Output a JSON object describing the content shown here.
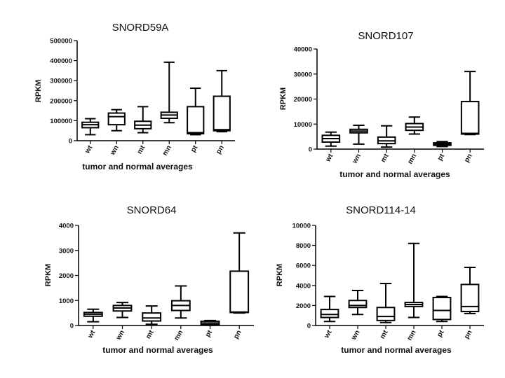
{
  "chart_data": [
    {
      "type": "boxplot",
      "title": "SNORD59A",
      "xlabel": "tumor and normal averages",
      "ylabel": "RPKM",
      "ylim": [
        0,
        500000
      ],
      "yticks": [
        0,
        100000,
        200000,
        300000,
        400000,
        500000
      ],
      "categories": [
        "wt",
        "wn",
        "mt",
        "mn",
        "pt",
        "pn"
      ],
      "boxes": [
        {
          "min": 30000,
          "q1": 65000,
          "median": 80000,
          "q3": 92000,
          "max": 110000
        },
        {
          "min": 50000,
          "q1": 80000,
          "median": 120000,
          "q3": 138000,
          "max": 155000
        },
        {
          "min": 40000,
          "q1": 60000,
          "median": 78000,
          "q3": 97000,
          "max": 170000
        },
        {
          "min": 90000,
          "q1": 112000,
          "median": 128000,
          "q3": 142000,
          "max": 392000
        },
        {
          "min": 30000,
          "q1": 35000,
          "median": 40000,
          "q3": 170000,
          "max": 262000
        },
        {
          "min": 45000,
          "q1": 50000,
          "median": 55000,
          "q3": 222000,
          "max": 350000
        }
      ]
    },
    {
      "type": "boxplot",
      "title": "SNORD107",
      "xlabel": "tumor and normal averages",
      "ylabel": "RPKM",
      "ylim": [
        0,
        40000
      ],
      "yticks": [
        0,
        10000,
        20000,
        30000,
        40000
      ],
      "categories": [
        "wt",
        "wn",
        "mt",
        "mn",
        "pt",
        "pn"
      ],
      "boxes": [
        {
          "min": 1200,
          "q1": 2800,
          "median": 4200,
          "q3": 5500,
          "max": 6800
        },
        {
          "min": 2000,
          "q1": 6500,
          "median": 7200,
          "q3": 7900,
          "max": 9500
        },
        {
          "min": 800,
          "q1": 2200,
          "median": 3300,
          "q3": 4800,
          "max": 9300
        },
        {
          "min": 6000,
          "q1": 7500,
          "median": 8800,
          "q3": 10200,
          "max": 12800
        },
        {
          "min": 1000,
          "q1": 1500,
          "median": 2000,
          "q3": 2500,
          "max": 3000
        },
        {
          "min": 5800,
          "q1": 6000,
          "median": 6300,
          "q3": 19000,
          "max": 31000
        }
      ]
    },
    {
      "type": "boxplot",
      "title": "SNORD64",
      "xlabel": "tumor and normal averages",
      "ylabel": "RPKM",
      "ylim": [
        0,
        4000
      ],
      "yticks": [
        0,
        1000,
        2000,
        3000,
        4000
      ],
      "categories": [
        "wt",
        "wn",
        "mt",
        "mn",
        "pt",
        "pn"
      ],
      "boxes": [
        {
          "min": 150,
          "q1": 370,
          "median": 450,
          "q3": 520,
          "max": 650
        },
        {
          "min": 320,
          "q1": 580,
          "median": 700,
          "q3": 800,
          "max": 920
        },
        {
          "min": 50,
          "q1": 180,
          "median": 300,
          "q3": 500,
          "max": 780
        },
        {
          "min": 300,
          "q1": 600,
          "median": 800,
          "q3": 990,
          "max": 1580
        },
        {
          "min": 10,
          "q1": 40,
          "median": 100,
          "q3": 170,
          "max": 200
        },
        {
          "min": 500,
          "q1": 520,
          "median": 540,
          "q3": 2170,
          "max": 3700
        }
      ]
    },
    {
      "type": "boxplot",
      "title": "SNORD114-14",
      "xlabel": "tumor and normal averages",
      "ylabel": "RPKM",
      "ylim": [
        0,
        10000
      ],
      "yticks": [
        0,
        2000,
        4000,
        6000,
        8000,
        10000
      ],
      "categories": [
        "wt",
        "wn",
        "mt",
        "mn",
        "pt",
        "pn"
      ],
      "boxes": [
        {
          "min": 400,
          "q1": 800,
          "median": 1100,
          "q3": 1600,
          "max": 2900
        },
        {
          "min": 1100,
          "q1": 1800,
          "median": 2000,
          "q3": 2500,
          "max": 3500
        },
        {
          "min": 300,
          "q1": 500,
          "median": 900,
          "q3": 1800,
          "max": 4200
        },
        {
          "min": 800,
          "q1": 1900,
          "median": 2100,
          "q3": 2300,
          "max": 8200
        },
        {
          "min": 400,
          "q1": 600,
          "median": 1500,
          "q3": 2800,
          "max": 2900
        },
        {
          "min": 1200,
          "q1": 1400,
          "median": 1900,
          "q3": 4100,
          "max": 5800
        }
      ]
    }
  ]
}
